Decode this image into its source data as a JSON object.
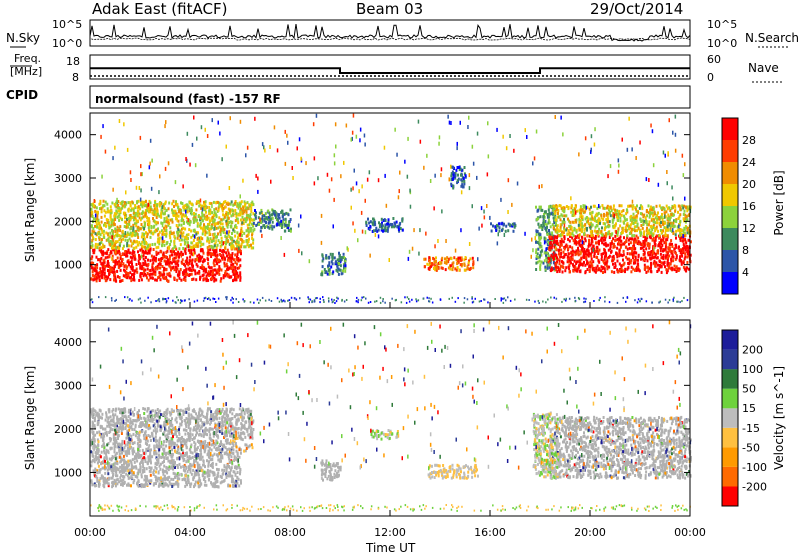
{
  "header": {
    "station": "Adak East (fitACF)",
    "beam": "Beam 03",
    "date": "29/Oct/2014"
  },
  "noise_panel": {
    "left_label": "N.Sky",
    "right_label": "N.Search",
    "left_ticks": [
      "10^5",
      "10^0"
    ],
    "right_ticks": [
      "10^5",
      "10^0"
    ]
  },
  "freq_panel": {
    "left_label_line1": "Freq.",
    "left_label_line2": "[MHz]",
    "right_label": "Nave",
    "left_ticks": [
      "18",
      "8"
    ],
    "right_ticks": [
      "60",
      "0"
    ]
  },
  "cpid": {
    "label": "CPID",
    "value": "normalsound (fast) -157 RF"
  },
  "x_axis": {
    "label": "Time UT",
    "ticks": [
      "00:00",
      "04:00",
      "08:00",
      "12:00",
      "16:00",
      "20:00",
      "00:00"
    ]
  },
  "colors": {
    "power": [
      "#0000ff",
      "#2c55a8",
      "#3d8a5e",
      "#8cd23c",
      "#f0c800",
      "#f08c00",
      "#ff3c00",
      "#ff0000"
    ],
    "velocity": [
      "#ff0000",
      "#ff6a00",
      "#ff9a00",
      "#ffc040",
      "#bdbdbd",
      "#6ed23c",
      "#2f7a3a",
      "#2c3c96",
      "#1c1c9a"
    ],
    "ground_scatter": "#b0b0b0"
  },
  "chart_data": [
    {
      "type": "line",
      "title": "",
      "ylabel": "N.Sky",
      "y_scale": "log",
      "ylim": [
        1,
        100000
      ],
      "description_ticks": [
        "10^0",
        "10^5"
      ],
      "x_range_hours": [
        0,
        24
      ]
    },
    {
      "type": "line",
      "ylabel": "Freq. [MHz]",
      "ylim": [
        8,
        18
      ],
      "x_range_hours": [
        0,
        24
      ],
      "series": [
        {
          "name": "Freq.",
          "x": [
            0,
            10,
            10,
            18,
            18,
            24
          ],
          "values": [
            12.5,
            12.5,
            10.5,
            10.5,
            12.5,
            12.5
          ]
        }
      ]
    },
    {
      "type": "heatmap",
      "ylabel": "Slant Range [km]",
      "xlabel": "",
      "x_range_hours": [
        0,
        24
      ],
      "y_ticks": [
        "1000",
        "2000",
        "3000",
        "4000"
      ],
      "ylim": [
        0,
        4500
      ],
      "colorbar_label": "Power [dB]",
      "colorbar_ticks": [
        "4",
        "8",
        "12",
        "16",
        "20",
        "24",
        "28"
      ],
      "colorbar_range": [
        0,
        30
      ],
      "regions": [
        {
          "t_start": 0,
          "t_end": 6,
          "r_start": 650,
          "r_end": 1400,
          "level": 28
        },
        {
          "t_start": 0,
          "t_end": 6.5,
          "r_start": 1400,
          "r_end": 2500,
          "level": 16
        },
        {
          "t_start": 6.5,
          "t_end": 8,
          "r_start": 1800,
          "r_end": 2300,
          "level": 8
        },
        {
          "t_start": 9.2,
          "t_end": 10.2,
          "r_start": 800,
          "r_end": 1300,
          "level": 8
        },
        {
          "t_start": 11,
          "t_end": 12.5,
          "r_start": 1800,
          "r_end": 2100,
          "level": 6
        },
        {
          "t_start": 13.3,
          "t_end": 15.3,
          "r_start": 900,
          "r_end": 1200,
          "level": 22
        },
        {
          "t_start": 14.4,
          "t_end": 15,
          "r_start": 2800,
          "r_end": 3300,
          "level": 6
        },
        {
          "t_start": 16,
          "t_end": 17,
          "r_start": 1800,
          "r_end": 2000,
          "level": 6
        },
        {
          "t_start": 17.8,
          "t_end": 18.6,
          "r_start": 900,
          "r_end": 2400,
          "level": 10
        },
        {
          "t_start": 18.3,
          "t_end": 24,
          "r_start": 850,
          "r_end": 1700,
          "level": 28
        },
        {
          "t_start": 18.5,
          "t_end": 24,
          "r_start": 1700,
          "r_end": 2400,
          "level": 16
        }
      ]
    },
    {
      "type": "heatmap",
      "ylabel": "Slant Range [km]",
      "xlabel": "Time UT",
      "x_range_hours": [
        0,
        24
      ],
      "y_ticks": [
        "1000",
        "2000",
        "3000",
        "4000"
      ],
      "ylim": [
        0,
        4500
      ],
      "colorbar_label": "Velocity [m s^-1]",
      "colorbar_ticks": [
        "-200",
        "-100",
        "-50",
        "-15",
        "15",
        "50",
        "100",
        "200"
      ],
      "regions": [
        {
          "t_start": 0,
          "t_end": 6,
          "r_start": 700,
          "r_end": 1500,
          "level": "ground"
        },
        {
          "t_start": 0,
          "t_end": 6.5,
          "r_start": 1500,
          "r_end": 2500,
          "level": "ground"
        },
        {
          "t_start": 9.2,
          "t_end": 10,
          "r_start": 850,
          "r_end": 1300,
          "level": "ground"
        },
        {
          "t_start": 13.5,
          "t_end": 15.5,
          "r_start": 900,
          "r_end": 1200,
          "level": 0
        },
        {
          "t_start": 11.2,
          "t_end": 12.3,
          "r_start": 1800,
          "r_end": 2000,
          "level": 30
        },
        {
          "t_start": 18.3,
          "t_end": 24,
          "r_start": 900,
          "r_end": 1800,
          "level": "ground"
        },
        {
          "t_start": 18.5,
          "t_end": 24,
          "r_start": 1800,
          "r_end": 2300,
          "level": "ground"
        },
        {
          "t_start": 17.7,
          "t_end": 18.7,
          "r_start": 900,
          "r_end": 2400,
          "level": 30
        }
      ]
    }
  ]
}
